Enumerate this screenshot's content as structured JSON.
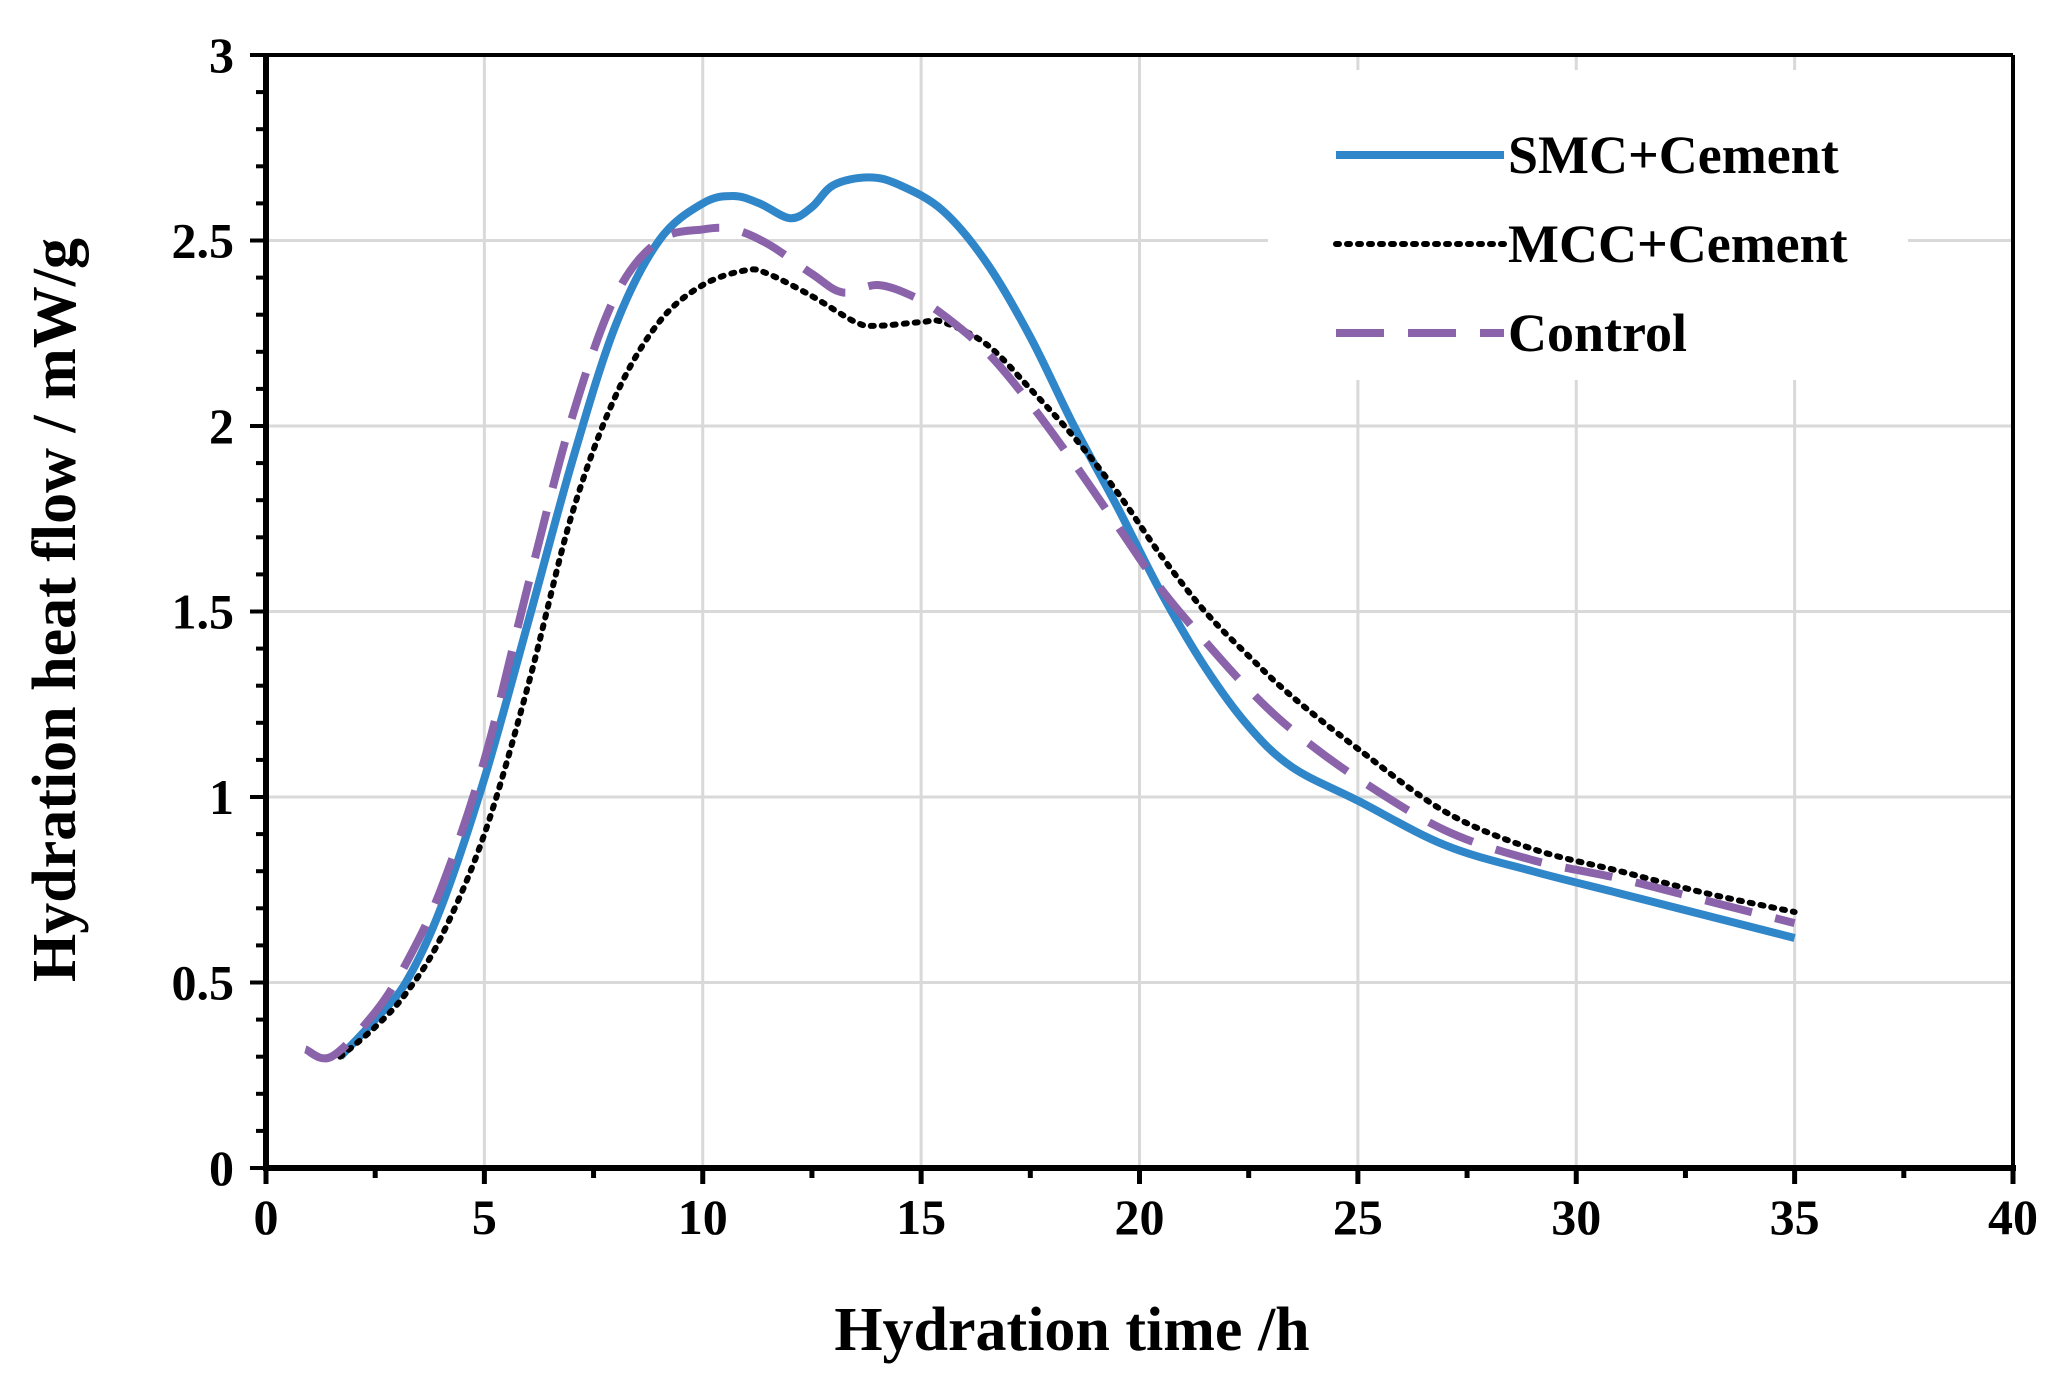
{
  "chart_data": {
    "type": "line",
    "title": "",
    "xlabel": "Hydration time /h",
    "ylabel": "Hydration heat flow / mW/g",
    "xlim": [
      0,
      40
    ],
    "ylim": [
      0,
      3
    ],
    "xticks": [
      0,
      5,
      10,
      15,
      20,
      25,
      30,
      35,
      40
    ],
    "yticks": [
      0,
      0.5,
      1,
      1.5,
      2,
      2.5,
      3
    ],
    "xtick_labels": [
      "0",
      "5",
      "10",
      "15",
      "20",
      "25",
      "30",
      "35",
      "40"
    ],
    "ytick_labels": [
      "0",
      "0.5",
      "1",
      "1.5",
      "2",
      "2.5",
      "3"
    ],
    "grid": true,
    "legend_position": "top-right",
    "series": [
      {
        "name": "SMC+Cement",
        "style": "solid",
        "color": "#2f86c8",
        "x": [
          1.7,
          2.5,
          3.2,
          4,
          5,
          6,
          7,
          8,
          9,
          10,
          10.7,
          11.3,
          12,
          12.5,
          13,
          13.8,
          14.5,
          15.5,
          16.5,
          17.5,
          18.5,
          19.5,
          20.5,
          21.5,
          22.5,
          23.5,
          25,
          27,
          29,
          31,
          33,
          35
        ],
        "y": [
          0.3,
          0.4,
          0.5,
          0.7,
          1.05,
          1.47,
          1.9,
          2.27,
          2.5,
          2.6,
          2.62,
          2.6,
          2.56,
          2.59,
          2.65,
          2.67,
          2.65,
          2.58,
          2.44,
          2.24,
          2.0,
          1.78,
          1.55,
          1.35,
          1.19,
          1.08,
          0.99,
          0.87,
          0.8,
          0.74,
          0.68,
          0.62
        ]
      },
      {
        "name": "MCC+Cement",
        "style": "dotted",
        "color": "#000000",
        "x": [
          1.7,
          2.5,
          3.2,
          4,
          5,
          6,
          7,
          8,
          9,
          10,
          11,
          11.5,
          12.5,
          13.5,
          14,
          15,
          15.5,
          16.5,
          17.5,
          18.5,
          19.5,
          20.5,
          21.5,
          22.5,
          23.5,
          25,
          27,
          29,
          31,
          33,
          35
        ],
        "y": [
          0.3,
          0.38,
          0.47,
          0.62,
          0.9,
          1.3,
          1.76,
          2.08,
          2.28,
          2.38,
          2.42,
          2.41,
          2.35,
          2.28,
          2.27,
          2.28,
          2.28,
          2.22,
          2.1,
          1.97,
          1.82,
          1.65,
          1.5,
          1.38,
          1.27,
          1.13,
          0.96,
          0.86,
          0.8,
          0.74,
          0.69
        ]
      },
      {
        "name": "Control",
        "style": "dashed",
        "color": "#8a63aa",
        "x": [
          0.9,
          1.5,
          2.5,
          3.2,
          4,
          5,
          6,
          7,
          8,
          9,
          10,
          10.7,
          11.5,
          12.5,
          13.2,
          14,
          14.8,
          15.5,
          16.5,
          17.5,
          18.5,
          19.5,
          20.5,
          21.5,
          22.5,
          23.5,
          25,
          27,
          29,
          31,
          33,
          35
        ],
        "y": [
          0.32,
          0.3,
          0.42,
          0.55,
          0.75,
          1.1,
          1.57,
          2.02,
          2.35,
          2.5,
          2.53,
          2.53,
          2.49,
          2.41,
          2.36,
          2.38,
          2.35,
          2.3,
          2.2,
          2.06,
          1.9,
          1.73,
          1.56,
          1.42,
          1.29,
          1.18,
          1.05,
          0.91,
          0.83,
          0.78,
          0.72,
          0.66
        ]
      }
    ]
  }
}
